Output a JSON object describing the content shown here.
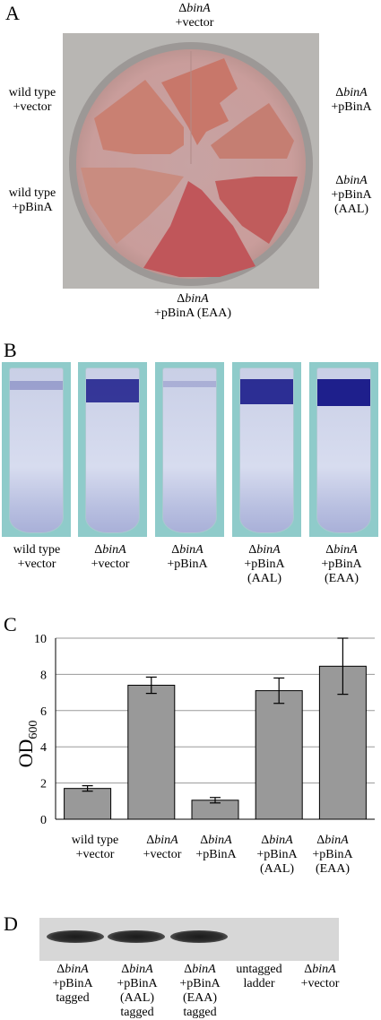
{
  "panels": {
    "a": {
      "letter": "A",
      "top_label": {
        "line1_prefix": "Δ",
        "line1_gene": "binA",
        "line2": "+vector"
      },
      "left_upper": {
        "line1": "wild type",
        "line2": "+vector"
      },
      "left_lower": {
        "line1": "wild type",
        "line2": "+pBinA"
      },
      "right_upper": {
        "line1_prefix": "Δ",
        "line1_gene": "binA",
        "line2": "+pBinA"
      },
      "right_lower": {
        "line1_prefix": "Δ",
        "line1_gene": "binA",
        "line2": "+pBinA",
        "line3": "(AAL)"
      },
      "bottom_label": {
        "line1_prefix": "Δ",
        "line1_gene": "binA",
        "line2": "+pBinA (EAA)"
      },
      "colors": {
        "plate_agar": "#c9a3a1",
        "colony": "#c87a6c",
        "background": "#b8b6b3"
      }
    },
    "b": {
      "letter": "B",
      "tubes": [
        {
          "line1": "wild type",
          "line2": "+vector",
          "line3": "",
          "is_mutant": false,
          "biofilm_level": 0.15
        },
        {
          "prefix": "Δ",
          "gene": "binA",
          "line2": "+vector",
          "line3": "",
          "is_mutant": true,
          "biofilm_level": 0.85
        },
        {
          "prefix": "Δ",
          "gene": "binA",
          "line2": "+pBinA",
          "line3": "",
          "is_mutant": true,
          "biofilm_level": 0.05
        },
        {
          "prefix": "Δ",
          "gene": "binA",
          "line2": "+pBinA",
          "line3": "(AAL)",
          "is_mutant": true,
          "biofilm_level": 0.9
        },
        {
          "prefix": "Δ",
          "gene": "binA",
          "line2": "+pBinA",
          "line3": "(EAA)",
          "is_mutant": true,
          "biofilm_level": 1.0
        }
      ],
      "colors": {
        "tube_bg": "#8fcbca",
        "crystal_violet": "#1e1f8c"
      }
    },
    "c": {
      "letter": "C",
      "y_axis_label_main": "OD",
      "y_axis_label_sub": "600"
    },
    "d": {
      "letter": "D",
      "lanes": [
        {
          "prefix": "Δ",
          "gene": "binA",
          "line2": "+pBinA",
          "line3": "tagged",
          "line4": "",
          "band": true
        },
        {
          "prefix": "Δ",
          "gene": "binA",
          "line2": "+pBinA",
          "line3": "(AAL)",
          "line4": "tagged",
          "band": true
        },
        {
          "prefix": "Δ",
          "gene": "binA",
          "line2": "+pBinA",
          "line3": "(EAA)",
          "line4": "tagged",
          "band": true
        },
        {
          "line1": "untagged",
          "line2": "ladder",
          "line3": "",
          "line4": "",
          "band": false
        },
        {
          "prefix": "Δ",
          "gene": "binA",
          "line2": "+vector",
          "line3": "",
          "line4": "",
          "band": false
        }
      ]
    }
  },
  "chart_data": {
    "type": "bar",
    "categories": [
      "wild type +vector",
      "ΔbinA +vector",
      "ΔbinA +pBinA",
      "ΔbinA +pBinA (AAL)",
      "ΔbinA +pBinA (EAA)"
    ],
    "values": [
      1.7,
      7.4,
      1.05,
      7.1,
      8.45
    ],
    "error": [
      0.15,
      0.45,
      0.15,
      0.7,
      1.55
    ],
    "ylabel": "OD600",
    "ylim": [
      0,
      10
    ],
    "yticks": [
      "0",
      "2",
      "4",
      "6",
      "8",
      "10"
    ],
    "grid": true,
    "legend": "none",
    "bar_color": "#999999"
  }
}
